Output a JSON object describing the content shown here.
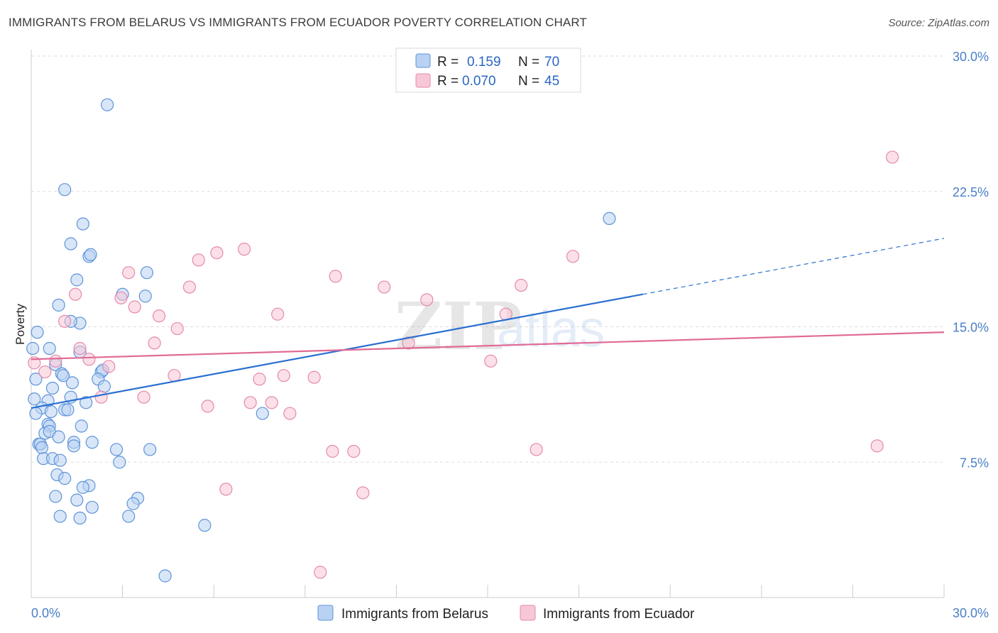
{
  "title": "IMMIGRANTS FROM BELARUS VS IMMIGRANTS FROM ECUADOR POVERTY CORRELATION CHART",
  "source": "Source: ZipAtlas.com",
  "watermark": {
    "zip": "ZIP",
    "atlas": "atlas"
  },
  "colors": {
    "blue": "#2a6fd0",
    "blue_fill": "#b9d1f2",
    "blue_stroke": "#5e94d9",
    "pink": "#e06a96",
    "pink_fill": "#f7c7d6",
    "pink_stroke": "#e58aac",
    "grid": "#dddddd",
    "axis": "#cccccc",
    "tick_text": "#4a7fc8"
  },
  "chart_data": {
    "type": "scatter",
    "xlabel": "",
    "ylabel": "Poverty",
    "xlim": [
      0,
      30
    ],
    "ylim": [
      0,
      30
    ],
    "x_tick_labels": [
      "0.0%",
      "30.0%"
    ],
    "y_ticks": [
      7.5,
      15.0,
      22.5,
      30.0
    ],
    "y_tick_labels": [
      "7.5%",
      "15.0%",
      "22.5%",
      "30.0%"
    ],
    "grid": "horizontal dashed",
    "legend_top": [
      {
        "r_label": "R =",
        "r_value": "0.159",
        "n_label": "N =",
        "n_value": "70",
        "series": "Immigrants from Belarus"
      },
      {
        "r_label": "R =",
        "r_value": "0.070",
        "n_label": "N =",
        "n_value": "45",
        "series": "Immigrants from Ecuador"
      }
    ],
    "legend_bottom": [
      "Immigrants from Belarus",
      "Immigrants from Ecuador"
    ],
    "series": [
      {
        "name": "Immigrants from Belarus",
        "color": "blue",
        "trend": {
          "x0": 0,
          "y0": 10.5,
          "x1": 20.1,
          "y1": 16.8,
          "dash_x1": 30,
          "dash_y1": 19.9
        },
        "points": [
          [
            2.5,
            27.3
          ],
          [
            1.1,
            22.6
          ],
          [
            1.7,
            20.7
          ],
          [
            1.3,
            19.6
          ],
          [
            1.9,
            18.9
          ],
          [
            1.95,
            19.0
          ],
          [
            3.8,
            18.0
          ],
          [
            1.5,
            17.6
          ],
          [
            3.0,
            16.8
          ],
          [
            3.75,
            16.7
          ],
          [
            0.9,
            16.2
          ],
          [
            1.6,
            15.2
          ],
          [
            1.3,
            15.3
          ],
          [
            0.2,
            14.7
          ],
          [
            0.05,
            13.8
          ],
          [
            0.6,
            13.8
          ],
          [
            1.6,
            13.6
          ],
          [
            0.8,
            12.9
          ],
          [
            2.3,
            12.5
          ],
          [
            2.35,
            12.6
          ],
          [
            1.0,
            12.4
          ],
          [
            1.05,
            12.3
          ],
          [
            0.15,
            12.1
          ],
          [
            2.2,
            12.1
          ],
          [
            1.35,
            11.9
          ],
          [
            2.4,
            11.7
          ],
          [
            0.7,
            11.6
          ],
          [
            0.1,
            11.0
          ],
          [
            1.3,
            11.1
          ],
          [
            0.55,
            10.9
          ],
          [
            1.8,
            10.8
          ],
          [
            0.35,
            10.5
          ],
          [
            1.1,
            10.4
          ],
          [
            1.2,
            10.4
          ],
          [
            0.65,
            10.3
          ],
          [
            0.15,
            10.2
          ],
          [
            7.6,
            10.2
          ],
          [
            0.55,
            9.6
          ],
          [
            0.6,
            9.5
          ],
          [
            1.65,
            9.5
          ],
          [
            0.45,
            9.1
          ],
          [
            0.6,
            9.2
          ],
          [
            0.9,
            8.9
          ],
          [
            0.25,
            8.5
          ],
          [
            0.3,
            8.5
          ],
          [
            1.4,
            8.6
          ],
          [
            2.0,
            8.6
          ],
          [
            0.35,
            8.3
          ],
          [
            1.4,
            8.4
          ],
          [
            2.8,
            8.2
          ],
          [
            3.9,
            8.2
          ],
          [
            0.4,
            7.7
          ],
          [
            0.7,
            7.7
          ],
          [
            0.95,
            7.6
          ],
          [
            2.9,
            7.5
          ],
          [
            0.85,
            6.8
          ],
          [
            1.1,
            6.6
          ],
          [
            1.9,
            6.2
          ],
          [
            1.7,
            6.1
          ],
          [
            0.8,
            5.6
          ],
          [
            3.5,
            5.5
          ],
          [
            1.5,
            5.4
          ],
          [
            3.35,
            5.2
          ],
          [
            2.0,
            5.0
          ],
          [
            0.95,
            4.5
          ],
          [
            1.6,
            4.4
          ],
          [
            3.2,
            4.5
          ],
          [
            5.7,
            4.0
          ],
          [
            19.0,
            21.0
          ],
          [
            4.4,
            1.2
          ]
        ]
      },
      {
        "name": "Immigrants from Ecuador",
        "color": "pink",
        "trend": {
          "x0": 0,
          "y0": 13.2,
          "x1": 30,
          "y1": 14.7
        },
        "points": [
          [
            28.3,
            24.4
          ],
          [
            7.0,
            19.3
          ],
          [
            6.1,
            19.1
          ],
          [
            5.5,
            18.7
          ],
          [
            17.8,
            18.9
          ],
          [
            3.2,
            18.0
          ],
          [
            10.0,
            17.8
          ],
          [
            16.1,
            17.3
          ],
          [
            5.2,
            17.2
          ],
          [
            11.6,
            17.2
          ],
          [
            1.45,
            16.8
          ],
          [
            2.95,
            16.6
          ],
          [
            13.0,
            16.5
          ],
          [
            3.4,
            16.1
          ],
          [
            8.1,
            15.7
          ],
          [
            15.6,
            15.7
          ],
          [
            4.2,
            15.6
          ],
          [
            1.1,
            15.3
          ],
          [
            4.8,
            14.9
          ],
          [
            4.05,
            14.1
          ],
          [
            12.4,
            14.1
          ],
          [
            1.6,
            13.8
          ],
          [
            1.9,
            13.2
          ],
          [
            0.8,
            13.1
          ],
          [
            15.1,
            13.1
          ],
          [
            0.1,
            13.0
          ],
          [
            2.55,
            12.8
          ],
          [
            0.45,
            12.5
          ],
          [
            4.7,
            12.3
          ],
          [
            8.3,
            12.3
          ],
          [
            9.3,
            12.2
          ],
          [
            7.5,
            12.1
          ],
          [
            2.3,
            11.1
          ],
          [
            3.7,
            11.1
          ],
          [
            7.2,
            10.8
          ],
          [
            7.9,
            10.8
          ],
          [
            5.8,
            10.6
          ],
          [
            8.5,
            10.2
          ],
          [
            27.8,
            8.4
          ],
          [
            9.9,
            8.1
          ],
          [
            10.6,
            8.1
          ],
          [
            16.6,
            8.2
          ],
          [
            6.4,
            6.0
          ],
          [
            10.9,
            5.8
          ],
          [
            9.5,
            1.4
          ]
        ]
      }
    ]
  }
}
